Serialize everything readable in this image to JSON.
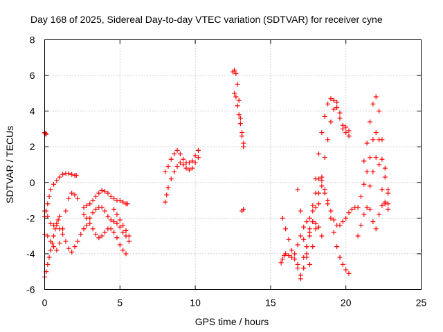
{
  "chart_data": {
    "type": "scatter",
    "title": "Day 168 of 2025, Sidereal Day-to-day VTEC variation (SDTVAR) for receiver cyne",
    "xlabel": "GPS time / hours",
    "ylabel": "SDTVAR / TECUs",
    "xlim": [
      0,
      25
    ],
    "ylim": [
      -6,
      8
    ],
    "x_ticks": [
      0,
      5,
      10,
      15,
      20,
      25
    ],
    "y_ticks": [
      -6,
      -4,
      -2,
      0,
      2,
      4,
      6,
      8
    ],
    "x_tick_labels": [
      "0",
      "5",
      "10",
      "15",
      "20",
      "25"
    ],
    "y_tick_labels": [
      "-6",
      "-4",
      "-2",
      "0",
      "2",
      "4",
      "6",
      "8"
    ],
    "grid": true,
    "marker": "+",
    "color": "#ff0000",
    "series": [
      {
        "x": [
          0.0,
          0.05,
          0.1
        ],
        "y": [
          2.8,
          2.75,
          2.7
        ]
      },
      {
        "x": [
          0.0,
          0.1,
          0.2,
          0.3,
          0.4,
          0.6,
          0.8,
          1.0,
          1.2,
          1.4,
          1.6,
          1.8,
          2.0,
          2.1
        ],
        "y": [
          -1.9,
          -1.6,
          -1.2,
          -0.8,
          -0.4,
          -0.1,
          0.1,
          0.3,
          0.45,
          0.5,
          0.5,
          0.45,
          0.4,
          0.4
        ]
      },
      {
        "x": [
          0.0,
          0.1,
          0.2,
          0.3,
          0.4,
          0.5,
          0.6,
          0.7,
          0.8,
          0.9,
          1.0
        ],
        "y": [
          -5.3,
          -5.0,
          -4.6,
          -4.2,
          -3.8,
          -3.4,
          -3.0,
          -2.6,
          -2.3,
          -2.1,
          -1.9
        ]
      },
      {
        "x": [
          0.0,
          0.2,
          0.4,
          0.6,
          0.8,
          1.0,
          1.2,
          1.4,
          1.6,
          1.8,
          2.0,
          2.2,
          2.4,
          2.6
        ],
        "y": [
          -1.6,
          -1.9,
          -2.3,
          -2.4,
          -2.4,
          -2.6,
          -2.9,
          -3.3,
          -3.7,
          -3.9,
          -3.6,
          -3.3,
          -2.9,
          -2.6
        ]
      },
      {
        "x": [
          0.0,
          0.2,
          0.4,
          0.6,
          0.8,
          1.0,
          1.2,
          1.4,
          1.6,
          1.8,
          2.0,
          2.2
        ],
        "y": [
          -2.9,
          -3.0,
          -3.3,
          -3.6,
          -3.8,
          -3.4,
          -2.6,
          -1.6,
          -0.9,
          -0.6,
          -0.7,
          -0.9
        ]
      },
      {
        "x": [
          2.6,
          2.8,
          3.0,
          3.2,
          3.4,
          3.6,
          3.8,
          4.0,
          4.2,
          4.4,
          4.6,
          4.8,
          5.0,
          5.2,
          5.4,
          5.5
        ],
        "y": [
          -1.4,
          -1.3,
          -1.2,
          -1.0,
          -0.8,
          -0.6,
          -0.45,
          -0.5,
          -0.6,
          -0.8,
          -0.9,
          -1.0,
          -1.0,
          -1.1,
          -1.2,
          -1.2
        ]
      },
      {
        "x": [
          2.6,
          2.8,
          3.0,
          3.2,
          3.4,
          3.6,
          3.8,
          4.0,
          4.2,
          4.4,
          4.6,
          4.8,
          5.0,
          5.2,
          5.4,
          5.6
        ],
        "y": [
          -2.6,
          -2.4,
          -2.0,
          -1.7,
          -1.5,
          -1.4,
          -1.4,
          -1.6,
          -1.9,
          -2.1,
          -2.2,
          -2.3,
          -2.5,
          -2.8,
          -3.0,
          -3.3
        ]
      },
      {
        "x": [
          2.6,
          2.8,
          3.0,
          3.2,
          3.4,
          3.6,
          3.8,
          4.0,
          4.2,
          4.4,
          4.6,
          4.8,
          5.0,
          5.2,
          5.4
        ],
        "y": [
          -1.8,
          -2.0,
          -2.3,
          -2.6,
          -2.9,
          -3.1,
          -3.0,
          -2.8,
          -2.6,
          -2.6,
          -2.8,
          -3.1,
          -3.5,
          -3.8,
          -4.0
        ]
      },
      {
        "x": [
          4.6,
          4.8,
          5.0,
          5.2,
          5.4,
          5.6
        ],
        "y": [
          -1.5,
          -1.8,
          -2.1,
          -2.4,
          -2.7,
          -3.0
        ]
      },
      {
        "x": [
          8.0,
          8.1,
          8.2,
          8.4,
          8.6,
          8.8,
          9.0,
          9.2,
          9.4,
          9.6,
          9.8,
          10.0,
          10.2
        ],
        "y": [
          -1.1,
          -0.7,
          -0.3,
          0.2,
          0.6,
          0.9,
          1.1,
          1.0,
          0.8,
          0.7,
          0.8,
          1.1,
          1.4
        ]
      },
      {
        "x": [
          8.0,
          8.2,
          8.4,
          8.6,
          8.8,
          9.0,
          9.2,
          9.4,
          9.6,
          9.8,
          10.0,
          10.2
        ],
        "y": [
          0.6,
          0.9,
          1.3,
          1.6,
          1.8,
          1.6,
          1.3,
          1.1,
          1.1,
          1.2,
          1.5,
          1.8
        ]
      },
      {
        "x": [
          12.5,
          12.6,
          12.7,
          12.8,
          12.9,
          13.0,
          13.1,
          13.2
        ],
        "y": [
          6.2,
          6.3,
          6.1,
          5.5,
          4.6,
          3.6,
          2.6,
          2.0
        ]
      },
      {
        "x": [
          12.6,
          12.7,
          12.8,
          12.9,
          13.0,
          13.1,
          13.2
        ],
        "y": [
          5.0,
          4.8,
          4.3,
          3.8,
          3.3,
          2.8,
          2.2
        ]
      },
      {
        "x": [
          13.1,
          13.2
        ],
        "y": [
          -1.6,
          -1.5
        ]
      },
      {
        "x": [
          15.7,
          15.8,
          15.9,
          16.0,
          16.2,
          16.4,
          16.6,
          16.8,
          17.0,
          17.2,
          17.4,
          17.6,
          17.8,
          18.0,
          18.2,
          18.4
        ],
        "y": [
          -4.5,
          -4.3,
          -4.1,
          -4.0,
          -4.1,
          -4.2,
          -4.0,
          -3.5,
          -3.0,
          -2.5,
          -2.2,
          -2.0,
          -2.2,
          -2.3,
          -2.5,
          -3.0
        ]
      },
      {
        "x": [
          15.8,
          16.0,
          16.2,
          16.4,
          16.6,
          16.8,
          17.0,
          17.2,
          17.4,
          17.6,
          17.8,
          18.0,
          18.2,
          18.4,
          18.6,
          18.8,
          19.0,
          19.2,
          19.4,
          19.6,
          19.8,
          20.0,
          20.2
        ],
        "y": [
          -2.0,
          -2.6,
          -3.2,
          -3.8,
          -4.3,
          -4.8,
          -5.2,
          -4.8,
          -4.0,
          -2.8,
          -1.3,
          0.2,
          1.6,
          2.8,
          3.7,
          4.4,
          4.7,
          4.6,
          4.2,
          3.6,
          3.0,
          2.8,
          2.6
        ]
      },
      {
        "x": [
          16.8,
          17.0,
          17.2,
          17.4,
          17.6,
          17.8,
          18.0,
          18.2,
          18.4,
          18.6,
          18.8,
          19.0,
          19.2,
          19.4,
          19.6,
          19.8,
          20.0,
          20.2
        ],
        "y": [
          -0.4,
          -1.6,
          -3.2,
          -4.2,
          -4.6,
          -3.6,
          -2.6,
          -1.2,
          0.3,
          1.4,
          2.4,
          3.4,
          4.1,
          4.5,
          3.9,
          3.2,
          3.1,
          2.9
        ]
      },
      {
        "x": [
          16.8,
          17.0,
          17.2,
          17.4,
          17.6,
          17.8,
          18.0,
          18.2,
          18.4,
          18.6,
          18.8,
          19.0,
          19.2,
          19.4,
          19.6,
          19.8,
          20.0,
          20.2
        ],
        "y": [
          -4.6,
          -5.4,
          -4.8,
          -3.6,
          -2.6,
          -1.6,
          -0.6,
          0.2,
          -0.2,
          -0.6,
          -1.2,
          -2.0,
          -2.8,
          -3.6,
          -4.2,
          -4.6,
          -4.9,
          -5.1
        ]
      },
      {
        "x": [
          17.2,
          17.4,
          17.6,
          17.8,
          18.0,
          18.2,
          18.4,
          18.6,
          18.8,
          19.0,
          19.2,
          19.4,
          19.6,
          19.8,
          20.0,
          20.2,
          20.4,
          20.6
        ],
        "y": [
          -4.2,
          -3.6,
          -3.0,
          -2.2,
          -1.4,
          -0.6,
          0.1,
          -0.4,
          -1.0,
          -1.6,
          -2.1,
          -2.4,
          -2.4,
          -2.2,
          -2.0,
          -1.7,
          -1.5,
          -1.4
        ]
      },
      {
        "x": [
          20.8,
          21.0,
          21.2,
          21.4,
          21.6,
          21.8,
          22.0,
          22.2,
          22.4,
          22.6,
          22.8
        ],
        "y": [
          -1.4,
          -0.8,
          -0.1,
          0.6,
          1.4,
          2.4,
          2.8,
          2.4,
          1.3,
          0.3,
          -0.4
        ]
      },
      {
        "x": [
          21.2,
          21.4,
          21.6,
          21.8,
          22.0,
          22.2,
          22.4,
          22.6,
          22.8
        ],
        "y": [
          1.2,
          2.2,
          3.4,
          4.4,
          4.8,
          4.0,
          2.4,
          0.8,
          -0.6
        ]
      },
      {
        "x": [
          21.6,
          21.8,
          22.0,
          22.2,
          22.4,
          22.6,
          22.8
        ],
        "y": [
          -0.2,
          0.6,
          1.4,
          1.0,
          -0.4,
          -1.2,
          -1.5
        ]
      },
      {
        "x": [
          20.8,
          21.0,
          21.2,
          21.4,
          21.6,
          21.8,
          22.0,
          22.2,
          22.4,
          22.6,
          22.8
        ],
        "y": [
          -3.0,
          -2.4,
          -1.8,
          -1.4,
          -1.5,
          -2.2,
          -2.6,
          -1.8,
          -1.3,
          -1.1,
          -1.2
        ]
      }
    ]
  }
}
